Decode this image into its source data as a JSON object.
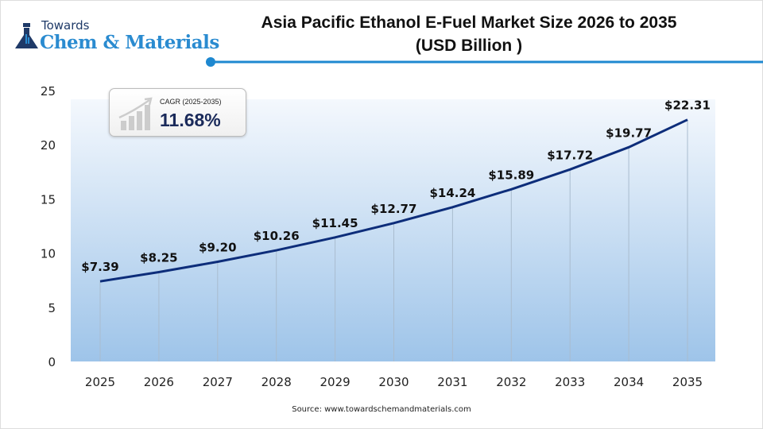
{
  "logo": {
    "line1": "Towards",
    "line2": "Chem & Materials"
  },
  "title_line1": "Asia Pacific Ethanol E-Fuel Market Size 2026 to 2035",
  "title_line2": "(USD Billion )",
  "cagr": {
    "label": "CAGR (2025-2035)",
    "value": "11.68%"
  },
  "source": "Source: www.towardschemandmaterials.com",
  "colors": {
    "line": "#0d2d7a",
    "accent": "#1e88d0",
    "fill_top": "#f2f7fc",
    "fill_bottom": "#9ec4e9"
  },
  "chart_data": {
    "type": "line",
    "title": "Asia Pacific Ethanol E-Fuel Market Size 2026 to 2035 (USD Billion )",
    "categories": [
      "2025",
      "2026",
      "2027",
      "2028",
      "2029",
      "2030",
      "2031",
      "2032",
      "2033",
      "2034",
      "2035"
    ],
    "values": [
      7.39,
      8.25,
      9.2,
      10.26,
      11.45,
      12.77,
      14.24,
      15.89,
      17.72,
      19.77,
      22.31
    ],
    "data_labels": [
      "$7.39",
      "$8.25",
      "$9.20",
      "$10.26",
      "$11.45",
      "$12.77",
      "$14.24",
      "$15.89",
      "$17.72",
      "$19.77",
      "$22.31"
    ],
    "yticks": [
      "0",
      "5",
      "10",
      "15",
      "20",
      "25"
    ],
    "ylim": [
      0,
      25
    ],
    "grid": "vertical lines at categories",
    "legend": "none"
  }
}
